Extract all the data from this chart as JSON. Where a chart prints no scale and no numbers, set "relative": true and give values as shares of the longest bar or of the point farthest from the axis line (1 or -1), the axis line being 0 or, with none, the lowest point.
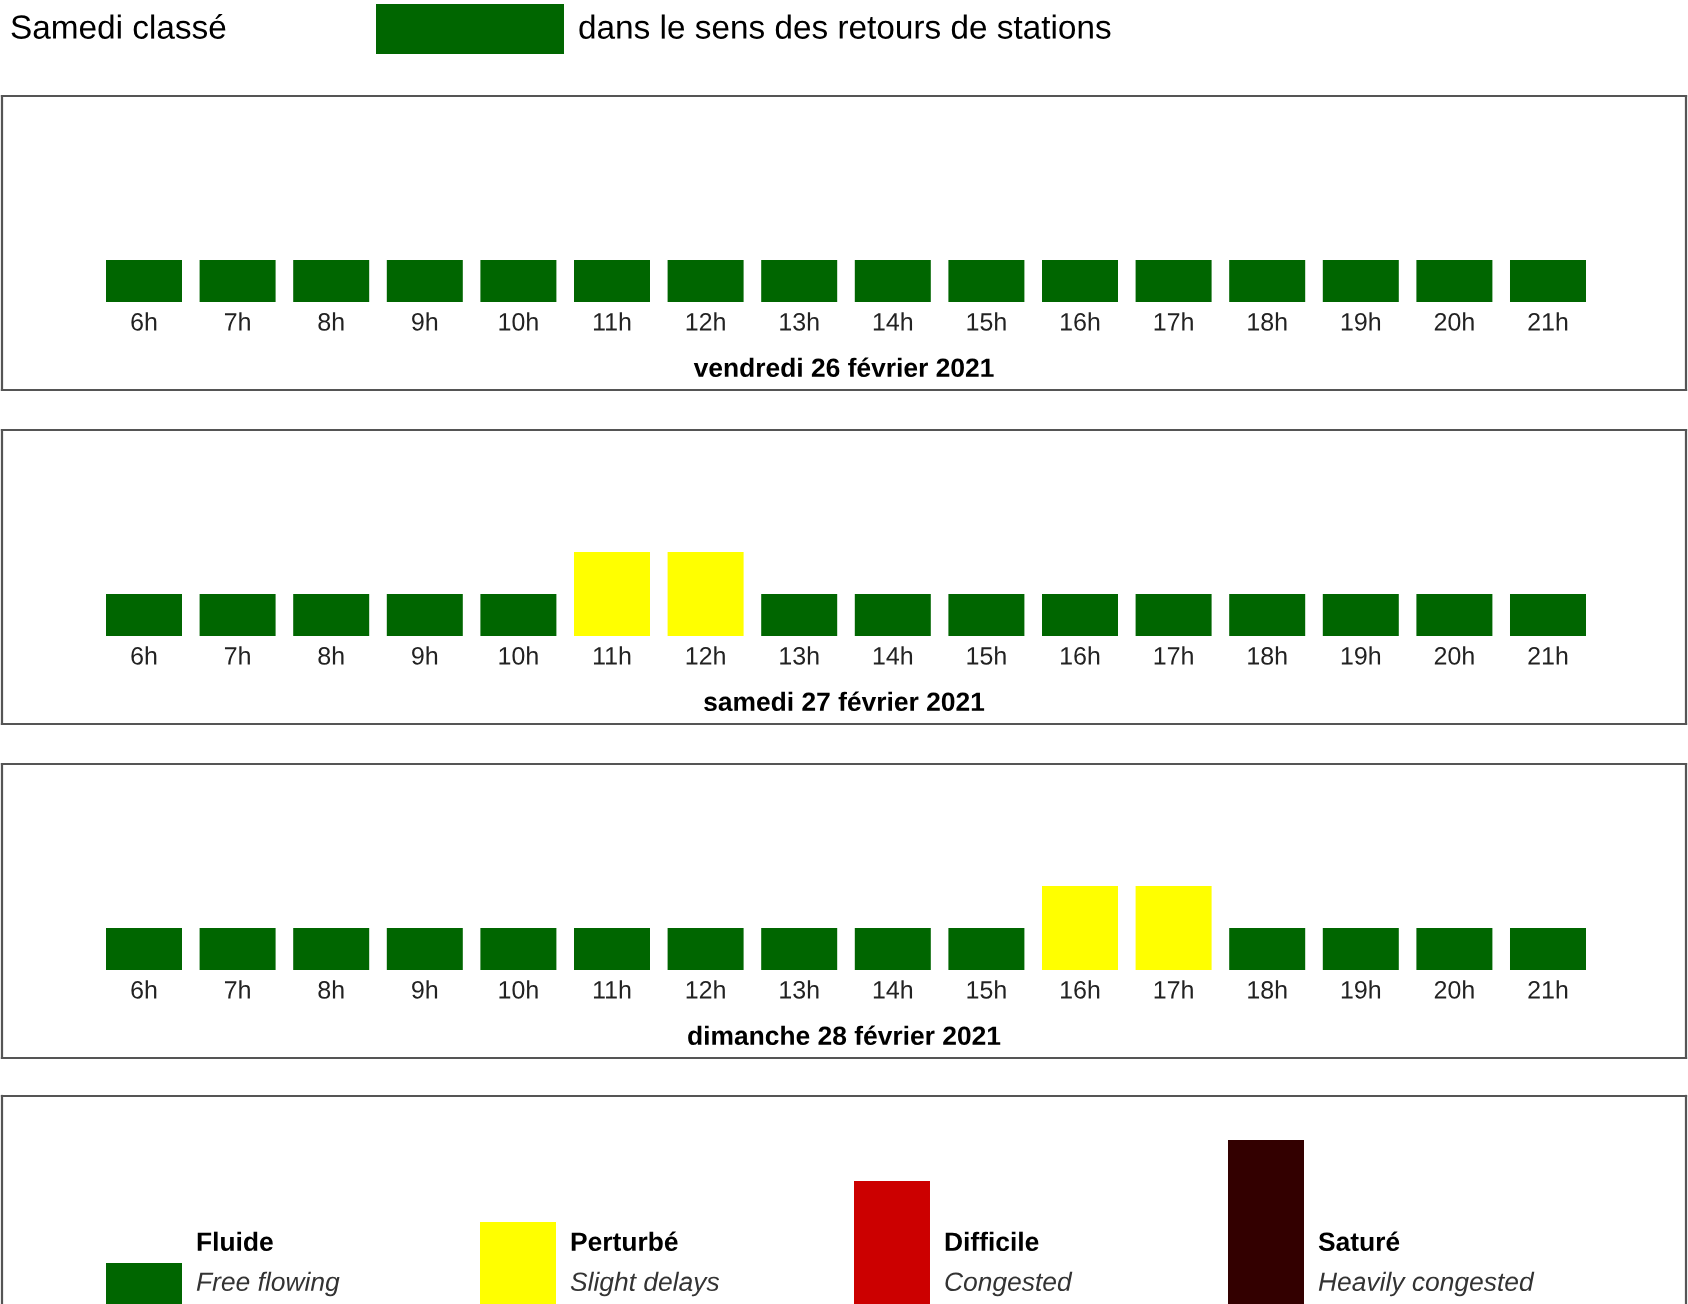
{
  "chart_data": [
    {
      "type": "bar",
      "title": "Samedi classé",
      "subtitle": "dans le sens des retours de stations",
      "color": "#006600",
      "relative": true,
      "xlabel": "vendredi 26 février 2021",
      "categories": [
        "6h",
        "7h",
        "8h",
        "9h",
        "10h",
        "11h",
        "12h",
        "13h",
        "14h",
        "15h",
        "16h",
        "17h",
        "18h",
        "19h",
        "20h",
        "21h"
      ],
      "values": [
        1,
        1,
        1,
        1,
        1,
        1,
        1,
        1,
        1,
        1,
        1,
        1,
        1,
        1,
        1,
        1
      ],
      "colors": [
        "#006600",
        "#006600",
        "#006600",
        "#006600",
        "#006600",
        "#006600",
        "#006600",
        "#006600",
        "#006600",
        "#006600",
        "#006600",
        "#006600",
        "#006600",
        "#006600",
        "#006600",
        "#006600"
      ]
    },
    {
      "type": "bar",
      "relative": true,
      "xlabel": "samedi 27 février 2021",
      "categories": [
        "6h",
        "7h",
        "8h",
        "9h",
        "10h",
        "11h",
        "12h",
        "13h",
        "14h",
        "15h",
        "16h",
        "17h",
        "18h",
        "19h",
        "20h",
        "21h"
      ],
      "values": [
        0.5,
        0.5,
        0.5,
        0.5,
        0.5,
        1,
        1,
        0.5,
        0.5,
        0.5,
        0.5,
        0.5,
        0.5,
        0.5,
        0.5,
        0.5
      ],
      "colors": [
        "#006600",
        "#006600",
        "#006600",
        "#006600",
        "#006600",
        "#ffff00",
        "#ffff00",
        "#006600",
        "#006600",
        "#006600",
        "#006600",
        "#006600",
        "#006600",
        "#006600",
        "#006600",
        "#006600"
      ]
    },
    {
      "type": "bar",
      "relative": true,
      "xlabel": "dimanche 28 février 2021",
      "categories": [
        "6h",
        "7h",
        "8h",
        "9h",
        "10h",
        "11h",
        "12h",
        "13h",
        "14h",
        "15h",
        "16h",
        "17h",
        "18h",
        "19h",
        "20h",
        "21h"
      ],
      "values": [
        0.5,
        0.5,
        0.5,
        0.5,
        0.5,
        0.5,
        0.5,
        0.5,
        0.5,
        0.5,
        1,
        1,
        0.5,
        0.5,
        0.5,
        0.5
      ],
      "colors": [
        "#006600",
        "#006600",
        "#006600",
        "#006600",
        "#006600",
        "#006600",
        "#006600",
        "#006600",
        "#006600",
        "#006600",
        "#ffff00",
        "#ffff00",
        "#006600",
        "#006600",
        "#006600",
        "#006600"
      ]
    },
    {
      "type": "bar",
      "relative": true,
      "categories": [
        "Fluide",
        "Perturbé",
        "Difficile",
        "Saturé"
      ],
      "annotations": [
        "Free flowing",
        "Slight delays",
        "Congested",
        "Heavily congested"
      ],
      "values": [
        0.25,
        0.5,
        0.75,
        1
      ],
      "colors": [
        "#006600",
        "#ffff00",
        "#cc0000",
        "#330000"
      ]
    }
  ]
}
